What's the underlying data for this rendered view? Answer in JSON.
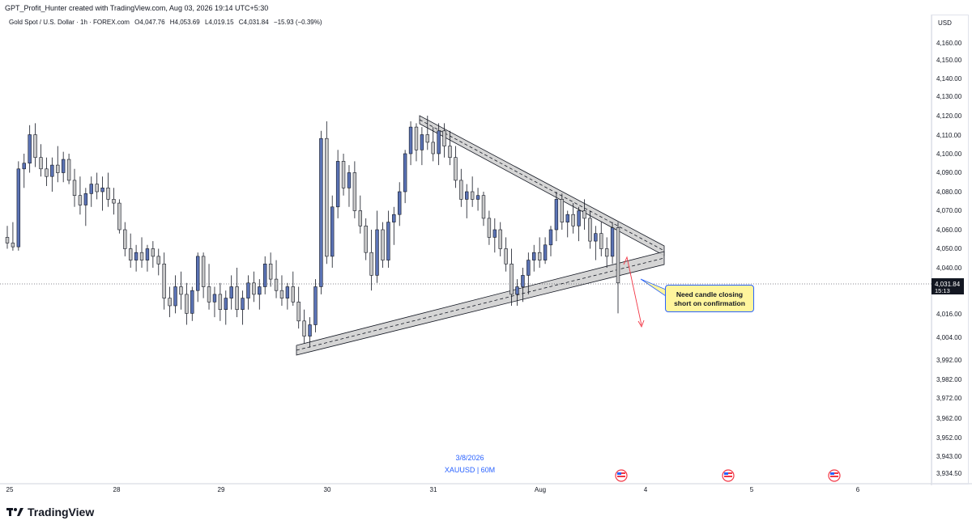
{
  "header": {
    "credit": "GPT_Profit_Hunter created with TradingView.com, Aug 03, 2026 19:14 UTC+5:30",
    "symbol": "Gold Spot / U.S. Dollar · 1h · FOREX.com",
    "open": "O4,047.76",
    "high": "H4,053.69",
    "low": "L4,019.15",
    "close": "C4,031.84",
    "change": "−15.93 (−0.39%)"
  },
  "brand": {
    "name": "TradingView"
  },
  "watermark": {
    "date": "3/8/2026",
    "symbol": "XAUUSD | 60M"
  },
  "annotation": {
    "line1": "Need candle closing",
    "line2": "short on confirmation"
  },
  "price_label": {
    "value": "4,031.84",
    "countdown": "15:13"
  },
  "colors": {
    "bull": "#5b73b5",
    "bear": "#c8c8c8",
    "wick": "#131722",
    "annotation_bg": "#fff59d",
    "annotation_border": "#2962ff",
    "arrow": "#f23645",
    "price_tag": "#131722"
  },
  "icons": [
    "us-flag-event-icon",
    "us-flag-event-icon",
    "us-flag-event-icon"
  ],
  "chart_data": {
    "type": "candlestick",
    "timeframe": "1h",
    "currency": "USD",
    "y_ticks": [
      "4,160.00",
      "4,150.00",
      "4,140.00",
      "4,130.00",
      "4,120.00",
      "4,110.00",
      "4,100.00",
      "4,090.00",
      "4,080.00",
      "4,070.00",
      "4,060.00",
      "4,050.00",
      "4,040.00",
      "4,016.00",
      "4,004.00",
      "3,992.00",
      "3,982.00",
      "3,972.00",
      "3,962.00",
      "3,952.00",
      "3,943.00",
      "3,934.50"
    ],
    "x_ticks": [
      "25",
      "28",
      "29",
      "30",
      "31",
      "Aug",
      "4",
      "5",
      "6"
    ],
    "last_price": 4031.84,
    "ohlc": [
      [
        4056,
        4062,
        4050,
        4053
      ],
      [
        4053,
        4064,
        4049,
        4051
      ],
      [
        4051,
        4096,
        4049,
        4092
      ],
      [
        4092,
        4100,
        4082,
        4095
      ],
      [
        4095,
        4115,
        4090,
        4110
      ],
      [
        4110,
        4116,
        4093,
        4098
      ],
      [
        4098,
        4105,
        4088,
        4092
      ],
      [
        4092,
        4098,
        4083,
        4088
      ],
      [
        4088,
        4098,
        4080,
        4094
      ],
      [
        4094,
        4104,
        4085,
        4090
      ],
      [
        4090,
        4101,
        4085,
        4097
      ],
      [
        4097,
        4100,
        4084,
        4086
      ],
      [
        4086,
        4092,
        4072,
        4078
      ],
      [
        4078,
        4088,
        4068,
        4073
      ],
      [
        4073,
        4082,
        4062,
        4079
      ],
      [
        4079,
        4088,
        4072,
        4084
      ],
      [
        4084,
        4090,
        4076,
        4080
      ],
      [
        4080,
        4088,
        4070,
        4082
      ],
      [
        4082,
        4090,
        4072,
        4076
      ],
      [
        4076,
        4082,
        4068,
        4074
      ],
      [
        4074,
        4076,
        4058,
        4060
      ],
      [
        4060,
        4064,
        4046,
        4050
      ],
      [
        4050,
        4058,
        4040,
        4044
      ],
      [
        4044,
        4052,
        4038,
        4048
      ],
      [
        4048,
        4056,
        4040,
        4044
      ],
      [
        4044,
        4052,
        4038,
        4050
      ],
      [
        4050,
        4054,
        4040,
        4046
      ],
      [
        4046,
        4050,
        4036,
        4042
      ],
      [
        4042,
        4048,
        4018,
        4024
      ],
      [
        4024,
        4030,
        4014,
        4020
      ],
      [
        4020,
        4036,
        4016,
        4030
      ],
      [
        4030,
        4038,
        4018,
        4026
      ],
      [
        4026,
        4032,
        4010,
        4016
      ],
      [
        4016,
        4030,
        4012,
        4028
      ],
      [
        4028,
        4048,
        4022,
        4046
      ],
      [
        4046,
        4048,
        4024,
        4030
      ],
      [
        4030,
        4042,
        4018,
        4022
      ],
      [
        4022,
        4030,
        4014,
        4026
      ],
      [
        4026,
        4032,
        4012,
        4018
      ],
      [
        4018,
        4028,
        4010,
        4024
      ],
      [
        4024,
        4036,
        4018,
        4030
      ],
      [
        4030,
        4040,
        4014,
        4018
      ],
      [
        4018,
        4028,
        4010,
        4024
      ],
      [
        4024,
        4036,
        4018,
        4032
      ],
      [
        4032,
        4038,
        4022,
        4026
      ],
      [
        4026,
        4034,
        4018,
        4030
      ],
      [
        4030,
        4046,
        4026,
        4042
      ],
      [
        4042,
        4048,
        4030,
        4034
      ],
      [
        4034,
        4044,
        4024,
        4028
      ],
      [
        4028,
        4036,
        4020,
        4024
      ],
      [
        4024,
        4032,
        4018,
        4030
      ],
      [
        4030,
        4038,
        4020,
        4022
      ],
      [
        4022,
        4030,
        4008,
        4012
      ],
      [
        4012,
        4018,
        4000,
        4004
      ],
      [
        4004,
        4014,
        3998,
        4010
      ],
      [
        4010,
        4034,
        4006,
        4030
      ],
      [
        4030,
        4112,
        4026,
        4108
      ],
      [
        4108,
        4117,
        4042,
        4046
      ],
      [
        4046,
        4078,
        4040,
        4072
      ],
      [
        4072,
        4102,
        4066,
        4096
      ],
      [
        4096,
        4100,
        4078,
        4082
      ],
      [
        4082,
        4094,
        4072,
        4090
      ],
      [
        4090,
        4096,
        4066,
        4070
      ],
      [
        4070,
        4078,
        4058,
        4062
      ],
      [
        4062,
        4066,
        4044,
        4048
      ],
      [
        4048,
        4060,
        4028,
        4036
      ],
      [
        4036,
        4070,
        4032,
        4060
      ],
      [
        4060,
        4064,
        4040,
        4044
      ],
      [
        4044,
        4070,
        4040,
        4064
      ],
      [
        4064,
        4072,
        4052,
        4068
      ],
      [
        4068,
        4085,
        4062,
        4080
      ],
      [
        4080,
        4102,
        4074,
        4100
      ],
      [
        4100,
        4117,
        4094,
        4114
      ],
      [
        4114,
        4116,
        4096,
        4102
      ],
      [
        4102,
        4114,
        4094,
        4110
      ],
      [
        4110,
        4120,
        4102,
        4106
      ],
      [
        4106,
        4114,
        4096,
        4100
      ],
      [
        4100,
        4116,
        4094,
        4112
      ],
      [
        4112,
        4116,
        4098,
        4104
      ],
      [
        4104,
        4112,
        4094,
        4098
      ],
      [
        4098,
        4104,
        4082,
        4086
      ],
      [
        4086,
        4092,
        4072,
        4076
      ],
      [
        4076,
        4084,
        4066,
        4080
      ],
      [
        4080,
        4088,
        4072,
        4076
      ],
      [
        4076,
        4082,
        4070,
        4078
      ],
      [
        4078,
        4080,
        4062,
        4066
      ],
      [
        4066,
        4070,
        4052,
        4056
      ],
      [
        4056,
        4066,
        4048,
        4060
      ],
      [
        4060,
        4064,
        4046,
        4050
      ],
      [
        4050,
        4056,
        4038,
        4042
      ],
      [
        4042,
        4050,
        4020,
        4026
      ],
      [
        4026,
        4034,
        4020,
        4030
      ],
      [
        4030,
        4040,
        4022,
        4036
      ],
      [
        4036,
        4048,
        4026,
        4044
      ],
      [
        4044,
        4052,
        4038,
        4048
      ],
      [
        4048,
        4056,
        4040,
        4044
      ],
      [
        4044,
        4056,
        4042,
        4052
      ],
      [
        4052,
        4062,
        4046,
        4060
      ],
      [
        4060,
        4080,
        4054,
        4076
      ],
      [
        4076,
        4079,
        4060,
        4064
      ],
      [
        4064,
        4070,
        4056,
        4068
      ],
      [
        4068,
        4074,
        4058,
        4062
      ],
      [
        4062,
        4072,
        4054,
        4070
      ],
      [
        4070,
        4076,
        4060,
        4066
      ],
      [
        4066,
        4070,
        4050,
        4054
      ],
      [
        4054,
        4062,
        4044,
        4058
      ],
      [
        4058,
        4064,
        4046,
        4050
      ],
      [
        4050,
        4056,
        4040,
        4046
      ],
      [
        4046,
        4064,
        4042,
        4061
      ],
      [
        4061,
        4064,
        4016,
        4032
      ]
    ],
    "overlays": {
      "triangle_upper_channel": "descending trendline band from peak near 4,120 to apex near 4,050",
      "triangle_lower_channel": "ascending trendline band from low near 4,004 to apex near 4,048",
      "projection_arrow": "downward arrow from ~4,044 toward ~4,008"
    }
  }
}
